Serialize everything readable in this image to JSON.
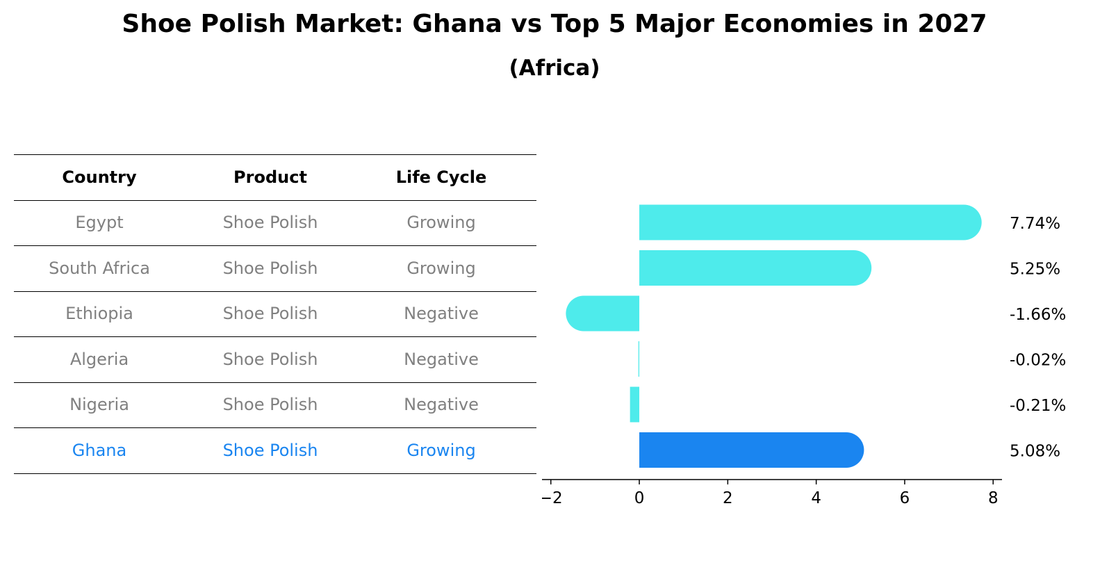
{
  "title": "Shoe Polish Market: Ghana vs Top 5 Major Economies in 2027",
  "subtitle": "(Africa)",
  "table": {
    "headers": [
      "Country",
      "Product",
      "Life Cycle"
    ],
    "rows": [
      [
        "Egypt",
        "Shoe Polish",
        "Growing"
      ],
      [
        "South Africa",
        "Shoe Polish",
        "Growing"
      ],
      [
        "Ethiopia",
        "Shoe Polish",
        "Negative"
      ],
      [
        "Algeria",
        "Shoe Polish",
        "Negative"
      ],
      [
        "Nigeria",
        "Shoe Polish",
        "Negative"
      ],
      [
        "Ghana",
        "Shoe Polish",
        "Growing"
      ]
    ],
    "highlight_row": 5
  },
  "colors": {
    "bar": "#4EEBEB",
    "highlight": "#1A85F0",
    "muted_text": "#808080",
    "text": "#000000"
  },
  "chart_data": {
    "type": "bar",
    "orientation": "horizontal",
    "categories": [
      "Egypt",
      "South Africa",
      "Ethiopia",
      "Algeria",
      "Nigeria",
      "Ghana"
    ],
    "values": [
      7.74,
      5.25,
      -1.66,
      -0.02,
      -0.21,
      5.08
    ],
    "value_labels": [
      "7.74%",
      "5.25%",
      "-1.66%",
      "-0.02%",
      "-0.21%",
      "5.08%"
    ],
    "xlim": [
      -2.2,
      8.2
    ],
    "xticks": [
      -2,
      0,
      2,
      4,
      6,
      8
    ],
    "xtick_labels": [
      "−2",
      "0",
      "2",
      "4",
      "6",
      "8"
    ],
    "highlight_index": 5,
    "grid": false
  }
}
